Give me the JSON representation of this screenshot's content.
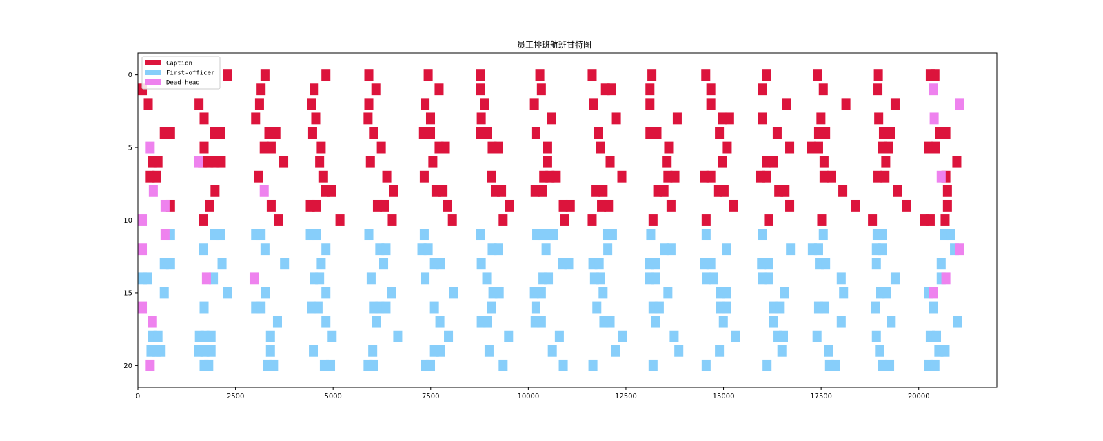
{
  "chart_data": {
    "type": "gantt",
    "title": "员工排班航班甘特图",
    "xlabel": "",
    "ylabel": "",
    "xlim": [
      0,
      22000
    ],
    "ylim": [
      21.5,
      -1.5
    ],
    "xticks": [
      0,
      2500,
      5000,
      7500,
      10000,
      12500,
      15000,
      17500,
      20000
    ],
    "yticks": [
      0,
      5,
      10,
      15,
      20
    ],
    "grid": false,
    "legend_position": "top-left",
    "series": [
      {
        "name": "Caption",
        "color": "#dc143c"
      },
      {
        "name": "First-officer",
        "color": "#87cefa"
      },
      {
        "name": "Dead-head",
        "color": "#ee82ee"
      }
    ],
    "bar_width": 0.8,
    "rows": [
      {
        "row": 0,
        "C": [
          2180,
          3140,
          4700,
          5800,
          7320,
          8660,
          10180,
          11520,
          13050,
          14430,
          15980,
          17300,
          18850,
          20180,
          20300
        ]
      },
      {
        "row": 1,
        "C": [
          0,
          3040,
          4400,
          5980,
          7600,
          8660,
          10220,
          11860,
          12020,
          13000,
          14560,
          15880,
          17440,
          18840
        ],
        "D": [
          20260
        ]
      },
      {
        "row": 2,
        "C": [
          150,
          1450,
          3000,
          4340,
          5800,
          7240,
          8760,
          10040,
          11560,
          13000,
          14560,
          16500,
          18020,
          19280
        ],
        "D": [
          20940
        ]
      },
      {
        "row": 3,
        "C": [
          1580,
          2900,
          4440,
          5780,
          7380,
          8680,
          10480,
          12140,
          13700,
          14860,
          15040,
          15880,
          17380,
          18860
        ],
        "D": [
          20280
        ]
      },
      {
        "row": 4,
        "C": [
          560,
          720,
          1840,
          2000,
          3240,
          3420,
          4360,
          5920,
          7200,
          7380,
          8660,
          8840,
          10080,
          11680,
          13000,
          13180,
          14780,
          16260,
          17320,
          17500,
          18980,
          19160,
          20420,
          20580
        ]
      },
      {
        "row": 5,
        "C": [
          1580,
          3120,
          3300,
          4580,
          6120,
          7600,
          7760,
          8960,
          9120,
          10380,
          11740,
          13480,
          14980,
          16580,
          17140,
          17320,
          18960,
          19120,
          20140,
          20320
        ],
        "D": [
          200
        ]
      },
      {
        "row": 6,
        "C": [
          260,
          400,
          1540,
          1700,
          1860,
          2020,
          3620,
          4540,
          5840,
          7440,
          10380,
          11980,
          13440,
          14860,
          15980,
          16160,
          17460,
          19040,
          20860
        ],
        "D": [
          1440
        ]
      },
      {
        "row": 7,
        "C": [
          200,
          360,
          2980,
          4640,
          6260,
          7220,
          8940,
          10280,
          10440,
          10600,
          12280,
          13460,
          13640,
          14400,
          14560,
          15820,
          15980,
          17460,
          17640,
          18840,
          19020,
          20580
        ],
        "D": [
          20460
        ]
      },
      {
        "row": 8,
        "C": [
          1860,
          4680,
          4840,
          6440,
          7520,
          7700,
          9040,
          9200,
          10060,
          10240,
          11620,
          11800,
          13200,
          13360,
          14740,
          14900,
          16300,
          16460,
          17940,
          19340,
          20620
        ],
        "D": [
          280,
          3120
        ]
      },
      {
        "row": 9,
        "C": [
          720,
          1720,
          3300,
          4300,
          4460,
          6020,
          6200,
          7820,
          9400,
          10780,
          10960,
          11760,
          11940,
          13540,
          15140,
          16580,
          18260,
          19580,
          20620
        ],
        "D": [
          580
        ]
      },
      {
        "row": 10,
        "C": [
          1560,
          3480,
          5060,
          6400,
          7940,
          9240,
          10820,
          11520,
          13080,
          14440,
          16040,
          17400,
          18700,
          20040,
          20180,
          20560
        ],
        "D": [
          0
        ]
      },
      {
        "row": 11,
        "F": [
          720,
          1840,
          2000,
          2900,
          3040,
          4300,
          4460,
          5800,
          7220,
          8660,
          10100,
          10240,
          10400,
          10540,
          11900,
          12040,
          13020,
          14440,
          15880,
          17440,
          18820,
          18960,
          20540,
          20700
        ],
        "D": [
          580
        ]
      },
      {
        "row": 12,
        "F": [
          1560,
          3140,
          4700,
          6080,
          6240,
          7160,
          7320,
          8960,
          9120,
          10340,
          11920,
          13380,
          13540,
          14960,
          16600,
          17160,
          17320,
          18800,
          18960,
          20800
        ],
        "D": [
          0,
          20940
        ]
      },
      {
        "row": 13,
        "F": [
          560,
          720,
          2040,
          3640,
          4580,
          6180,
          7480,
          7640,
          8680,
          10760,
          10920,
          11540,
          11700,
          12980,
          13140,
          14400,
          14560,
          15860,
          16040,
          17340,
          17500,
          18800,
          20460
        ]
      },
      {
        "row": 14,
        "F": [
          0,
          140,
          1820,
          4400,
          4540,
          5860,
          7240,
          8820,
          10260,
          10400,
          11580,
          11740,
          12980,
          13140,
          14460,
          14620,
          15880,
          16040,
          17900,
          19280,
          20460
        ],
        "D": [
          1640,
          2860,
          20580
        ]
      },
      {
        "row": 15,
        "F": [
          560,
          2180,
          3160,
          4700,
          6380,
          7980,
          8980,
          9140,
          10040,
          10220,
          11800,
          13460,
          14800,
          14960,
          16440,
          17960,
          18900,
          19060,
          20140
        ],
        "D": [
          20260
        ]
      },
      {
        "row": 16,
        "F": [
          1580,
          2900,
          3040,
          4340,
          4500,
          5920,
          6080,
          6240,
          7480,
          8940,
          10080,
          11640,
          13080,
          13240,
          14800,
          14960,
          16160,
          16320,
          17320,
          17480,
          18780,
          20260
        ],
        "D": [
          0
        ]
      },
      {
        "row": 17,
        "F": [
          3460,
          4700,
          6000,
          7620,
          8680,
          8840,
          10060,
          10220,
          11820,
          11980,
          13140,
          14880,
          16160,
          17900,
          19180,
          20880
        ],
        "D": [
          260
        ]
      },
      {
        "row": 18,
        "F": [
          260,
          400,
          1460,
          1600,
          1760,
          3280,
          4860,
          6540,
          7840,
          9380,
          10680,
          12300,
          13620,
          15200,
          16280,
          16420,
          17280,
          18800,
          20180,
          20340
        ]
      },
      {
        "row": 19,
        "F": [
          220,
          360,
          480,
          1440,
          1600,
          1760,
          3280,
          4380,
          5900,
          7480,
          7640,
          8880,
          10500,
          12120,
          13740,
          14780,
          16380,
          17580,
          18880,
          20400,
          20560
        ]
      },
      {
        "row": 20,
        "F": [
          1580,
          1700,
          3200,
          3360,
          4660,
          4820,
          5780,
          5920,
          7240,
          7380,
          9240,
          10780,
          11540,
          13080,
          14440,
          16000,
          17600,
          17760,
          18960,
          19140,
          20140,
          20300
        ],
        "D": [
          200
        ]
      }
    ]
  }
}
